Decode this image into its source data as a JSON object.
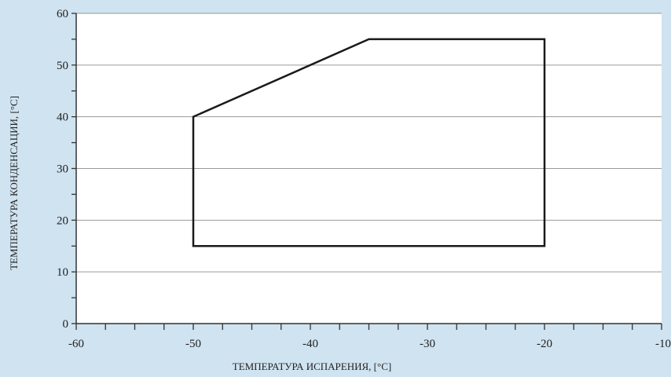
{
  "colors": {
    "background": "#cfe3f0",
    "plot_area": "#ffffff",
    "gridline": "#9a9a9a",
    "envelope": "#1a1a1a",
    "axis": "#333333",
    "text": "#222222"
  },
  "chart_data": {
    "type": "line",
    "title": "",
    "xlabel": "ТЕМПЕРАТУРА ИСПАРЕНИЯ, [°C]",
    "ylabel": "ТЕМПЕРАТУРА КОНДЕНСАЦИИ, [°C]",
    "xlim": [
      -60,
      -10
    ],
    "ylim": [
      0,
      60
    ],
    "xticks_major": [
      -60,
      -50,
      -40,
      -30,
      -20,
      -10
    ],
    "xtick_labels": [
      "-60",
      "-50",
      "-40",
      "-30",
      "-20",
      "-10"
    ],
    "xticks_minor_step": 2.5,
    "yticks_major": [
      0,
      10,
      20,
      30,
      40,
      50,
      60
    ],
    "ytick_labels": [
      "0",
      "",
      "20",
      "",
      "40",
      "",
      "60"
    ],
    "ytick_labels_side": [
      "",
      "",
      "",
      "30",
      "",
      "50",
      ""
    ],
    "ytick_labels_all": [
      "0",
      "10",
      "20",
      "30",
      "40",
      "50",
      "60"
    ],
    "yticks_minor_step": 5,
    "grid": {
      "horizontal": true,
      "vertical": false
    },
    "legend": "none",
    "series": [
      {
        "closed": true,
        "points": [
          {
            "x": -50,
            "y": 15
          },
          {
            "x": -50,
            "y": 40
          },
          {
            "x": -35,
            "y": 55
          },
          {
            "x": -20,
            "y": 55
          },
          {
            "x": -20,
            "y": 15
          }
        ]
      }
    ]
  }
}
